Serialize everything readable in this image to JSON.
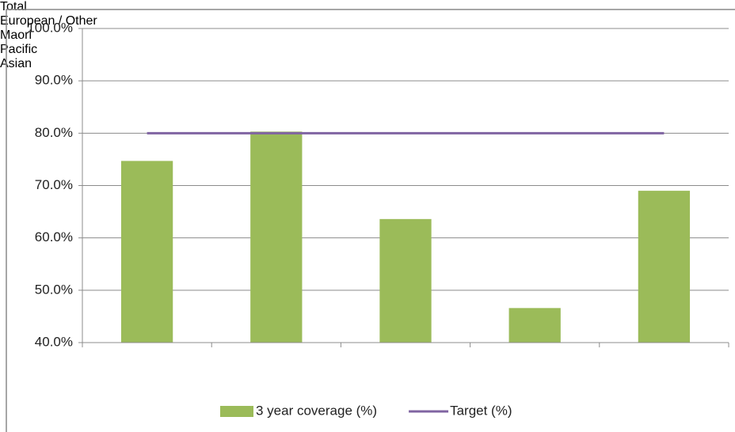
{
  "chart_data": {
    "type": "bar",
    "categories": [
      "Total",
      "European / Other",
      "Maori",
      "Pacific",
      "Asian"
    ],
    "series": [
      {
        "name": "3 year coverage (%)",
        "type": "bar",
        "color": "#9bbb59",
        "values": [
          74.7,
          80.3,
          63.6,
          46.6,
          69.0
        ]
      },
      {
        "name": "Target (%)",
        "type": "line",
        "color": "#8064a2",
        "values": [
          80,
          80,
          80,
          80,
          80
        ]
      }
    ],
    "ylim": [
      40,
      100
    ],
    "yticks": [
      {
        "value": 40,
        "label": "40.0%"
      },
      {
        "value": 50,
        "label": "50.0%"
      },
      {
        "value": 60,
        "label": "60.0%"
      },
      {
        "value": 70,
        "label": "70.0%"
      },
      {
        "value": 80,
        "label": "80.0%"
      },
      {
        "value": 90,
        "label": "90.0%"
      },
      {
        "value": 100,
        "label": "100.0%"
      }
    ],
    "grid": true,
    "legend": "bottom"
  }
}
